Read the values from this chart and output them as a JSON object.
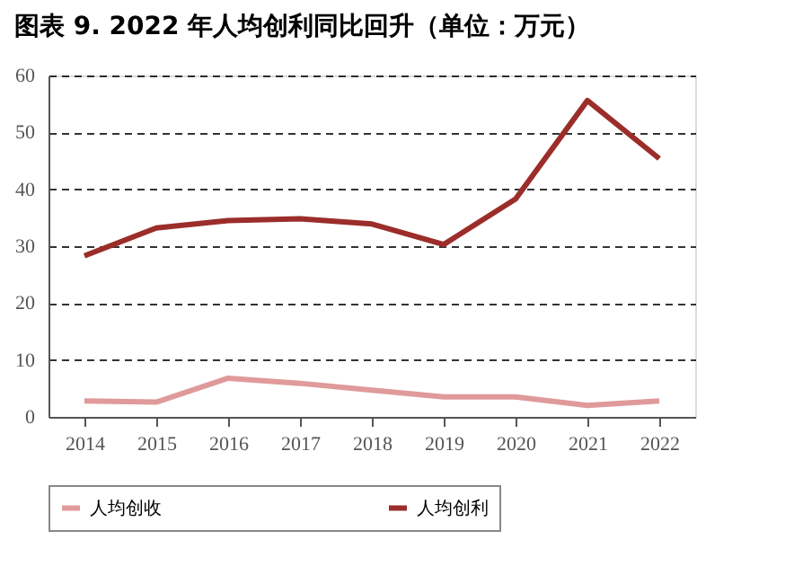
{
  "chart_data": {
    "type": "line",
    "title": "图表 9. 2022 年人均创利同比回升（单位：万元）",
    "categories": [
      "2014",
      "2015",
      "2016",
      "2017",
      "2018",
      "2019",
      "2020",
      "2021",
      "2022"
    ],
    "series": [
      {
        "name": "人均创收",
        "color": "#e09a9a",
        "values": [
          2.8,
          2.6,
          6.8,
          5.9,
          4.7,
          3.5,
          3.5,
          2.0,
          2.8
        ]
      },
      {
        "name": "人均创利",
        "color": "#9b2d2a",
        "values": [
          28.3,
          33.2,
          34.5,
          34.8,
          33.9,
          30.3,
          38.3,
          55.6,
          45.4
        ]
      }
    ],
    "ylim": [
      0,
      60
    ],
    "yticks": [
      0,
      10,
      20,
      30,
      40,
      50,
      60
    ],
    "grid": "y",
    "legend": "bottom",
    "line_style": "solid",
    "marker": "none"
  }
}
